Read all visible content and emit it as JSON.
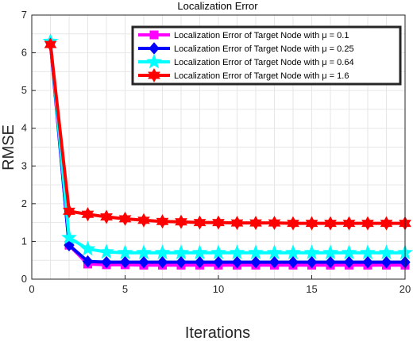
{
  "chart_data": {
    "type": "line",
    "title": "Localization Error",
    "xlabel": "Iterations",
    "ylabel": "RMSE",
    "xlim": [
      0,
      20
    ],
    "ylim": [
      0,
      7
    ],
    "xticks": [
      0,
      5,
      10,
      15,
      20
    ],
    "yticks": [
      0,
      1,
      2,
      3,
      4,
      5,
      6,
      7
    ],
    "grid": true,
    "legend_position": "top-right",
    "x": [
      1,
      2,
      3,
      4,
      5,
      6,
      7,
      8,
      9,
      10,
      11,
      12,
      13,
      14,
      15,
      16,
      17,
      18,
      19,
      20
    ],
    "series": [
      {
        "name": "Localization Error of Target Node with μ = 0.1",
        "color": "#ff00ff",
        "marker": "square",
        "values": [
          6.25,
          0.9,
          0.4,
          0.38,
          0.38,
          0.37,
          0.37,
          0.37,
          0.37,
          0.37,
          0.37,
          0.37,
          0.37,
          0.37,
          0.37,
          0.37,
          0.37,
          0.37,
          0.37,
          0.37
        ]
      },
      {
        "name": "Localization Error of Target Node with μ = 0.25",
        "color": "#0000ff",
        "marker": "diamond",
        "values": [
          6.28,
          0.9,
          0.47,
          0.45,
          0.45,
          0.45,
          0.45,
          0.45,
          0.45,
          0.45,
          0.45,
          0.45,
          0.45,
          0.45,
          0.45,
          0.45,
          0.45,
          0.45,
          0.45,
          0.45
        ]
      },
      {
        "name": "Localization Error of Target Node with μ = 0.64",
        "color": "#00ffff",
        "marker": "pentagram",
        "values": [
          6.3,
          1.1,
          0.8,
          0.72,
          0.7,
          0.7,
          0.7,
          0.7,
          0.7,
          0.7,
          0.7,
          0.7,
          0.7,
          0.7,
          0.7,
          0.7,
          0.7,
          0.7,
          0.7,
          0.7
        ]
      },
      {
        "name": "Localization Error of Target Node with μ = 1.6",
        "color": "#ff0000",
        "marker": "hexagram",
        "values": [
          6.22,
          1.8,
          1.72,
          1.65,
          1.6,
          1.56,
          1.53,
          1.52,
          1.5,
          1.5,
          1.49,
          1.49,
          1.49,
          1.48,
          1.48,
          1.48,
          1.48,
          1.48,
          1.48,
          1.48
        ]
      }
    ]
  }
}
